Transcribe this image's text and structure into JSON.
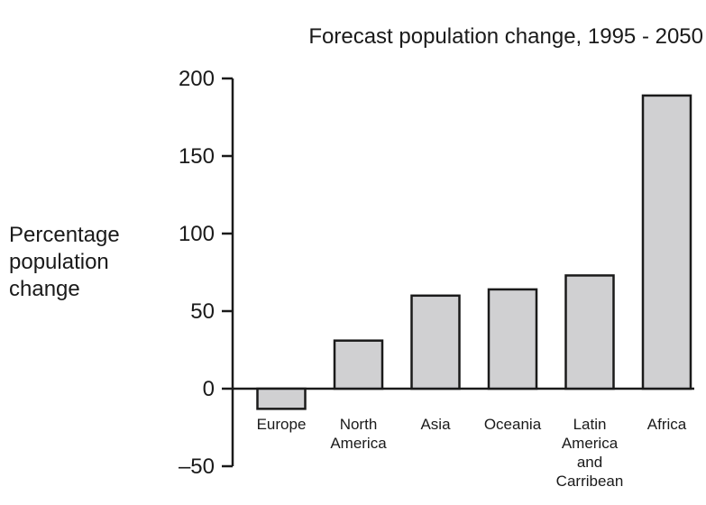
{
  "chart_data": {
    "type": "bar",
    "title": "Forecast population change, 1995 - 2050",
    "ylabel_lines": [
      "Percentage",
      "population",
      "change"
    ],
    "categories": [
      [
        "Europe"
      ],
      [
        "North",
        "America"
      ],
      [
        "Asia"
      ],
      [
        "Oceania"
      ],
      [
        "Latin",
        "America",
        "and",
        "Carribean"
      ],
      [
        "Africa"
      ]
    ],
    "values": [
      -13,
      31,
      60,
      64,
      73,
      189
    ],
    "ylim": [
      -50,
      200
    ],
    "yticks": [
      200,
      150,
      100,
      50,
      0,
      -50
    ],
    "ytick_labels": [
      "200",
      "150",
      "100",
      "50",
      "0",
      "–50"
    ],
    "grid": false,
    "legend": "none",
    "bar_color": "#d0d0d2",
    "edge_color": "#1a1a1a"
  }
}
